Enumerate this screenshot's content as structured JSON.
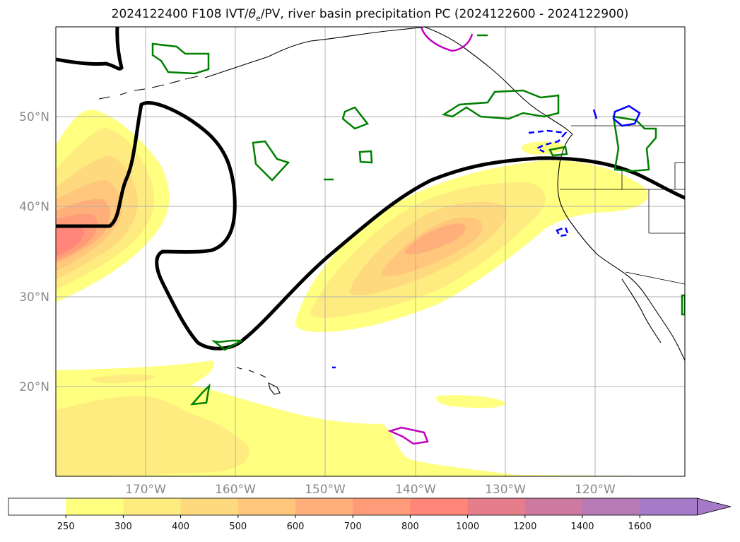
{
  "title": {
    "prefix": "2024122400 F108 IVT/",
    "theta": "θ",
    "theta_sub": "e",
    "suffix": "/PV, river basin precipitation PC (2024122600 - 2024122900)"
  },
  "map": {
    "lon_labels": [
      "170°W",
      "160°W",
      "150°W",
      "140°W",
      "130°W",
      "120°W"
    ],
    "lat_labels": [
      "50°N",
      "40°N",
      "30°N",
      "20°N"
    ],
    "gridlines": true
  },
  "colorbar": {
    "ticks": [
      "250",
      "300",
      "400",
      "500",
      "600",
      "700",
      "800",
      "1000",
      "1200",
      "1400",
      "1600"
    ],
    "colors": [
      "#ffffff",
      "#ffff80",
      "#ffec80",
      "#ffd97e",
      "#ffc67c",
      "#ffb07a",
      "#ff9b79",
      "#ff8678",
      "#e67d8a",
      "#cc7a9f",
      "#b87ab5",
      "#a67ac7"
    ],
    "extend": "max"
  },
  "contour_colors": {
    "pv": "#000000",
    "basin": "#008000",
    "negative": "#0000ff",
    "high": "#c000c0"
  }
}
